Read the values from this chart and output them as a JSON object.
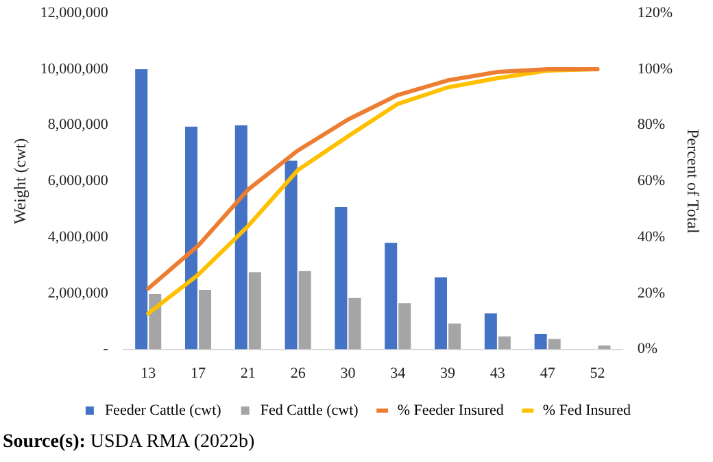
{
  "chart_data": {
    "type": "bar",
    "categories": [
      "13",
      "17",
      "21",
      "26",
      "30",
      "34",
      "39",
      "43",
      "47",
      "52"
    ],
    "series": [
      {
        "name": "Feeder Cattle (cwt)",
        "color": "#4472c4",
        "values": [
          10000000,
          7950000,
          8000000,
          6730000,
          5080000,
          3800000,
          2570000,
          1280000,
          550000,
          0
        ]
      },
      {
        "name": "Fed Cattle (cwt)",
        "color": "#a5a5a5",
        "values": [
          1970000,
          2120000,
          2750000,
          2800000,
          1830000,
          1650000,
          920000,
          460000,
          370000,
          140000
        ]
      },
      {
        "name": "% Feeder Insured",
        "type": "line",
        "axis": "y2",
        "color": "#ed7d31",
        "values": [
          21.7,
          37,
          57,
          71,
          82,
          90.8,
          96,
          99,
          100,
          100
        ]
      },
      {
        "name": "% Fed Insured",
        "type": "line",
        "axis": "y2",
        "color": "#ffc000",
        "values": [
          12.8,
          26.6,
          44,
          64,
          76,
          87.6,
          93.5,
          96.8,
          99.5,
          100
        ]
      }
    ],
    "ylabel": "Weight (cwt)",
    "y2label": "Percent of Total",
    "ylim": [
      0,
      12000000
    ],
    "yticks": [
      {
        "value": 0,
        "label": "-"
      },
      {
        "value": 2000000,
        "label": "2,000,000"
      },
      {
        "value": 4000000,
        "label": "4,000,000"
      },
      {
        "value": 6000000,
        "label": "6,000,000"
      },
      {
        "value": 8000000,
        "label": "8,000,000"
      },
      {
        "value": 10000000,
        "label": "10,000,000"
      },
      {
        "value": 12000000,
        "label": "12,000,000"
      }
    ],
    "y2lim": [
      0,
      120
    ],
    "y2ticks": [
      {
        "value": 0,
        "label": "0%"
      },
      {
        "value": 20,
        "label": "20%"
      },
      {
        "value": 40,
        "label": "40%"
      },
      {
        "value": 60,
        "label": "60%"
      },
      {
        "value": 80,
        "label": "80%"
      },
      {
        "value": 100,
        "label": "100%"
      },
      {
        "value": 120,
        "label": "120%"
      }
    ],
    "grid": false,
    "legend": "bottom",
    "marker": "none",
    "line_style": "solid",
    "annotations": [
      "Source(s): USDA RMA (2022b)"
    ]
  }
}
